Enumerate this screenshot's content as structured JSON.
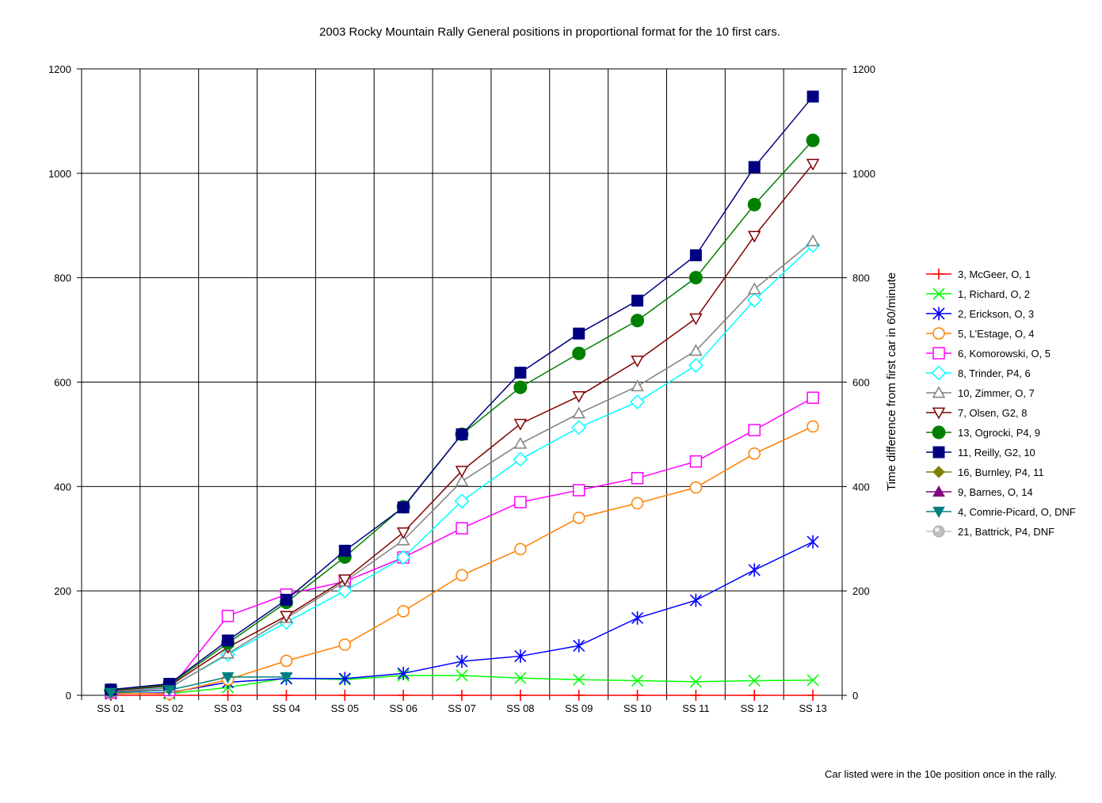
{
  "chart_data": {
    "type": "line",
    "title": "2003 Rocky Mountain Rally  General positions in proportional format for the 10 first cars.",
    "xlabel": "",
    "ylabel": "Time difference from first car in 60/minute",
    "ylim": [
      0,
      1200
    ],
    "yticks": [
      "0",
      "200",
      "400",
      "600",
      "800",
      "1000",
      "1200"
    ],
    "grid": true,
    "legend_position": "right",
    "categories": [
      "SS 01",
      "SS 02",
      "SS 03",
      "SS 04",
      "SS 05",
      "SS 06",
      "SS 07",
      "SS 08",
      "SS 09",
      "SS 10",
      "SS 11",
      "SS 12",
      "SS 13"
    ],
    "series": [
      {
        "name": "3, McGeer, O, 1",
        "color": "#ff0000",
        "marker": "plus",
        "values": [
          0,
          0,
          0,
          0,
          0,
          0,
          0,
          0,
          0,
          0,
          0,
          0,
          0
        ]
      },
      {
        "name": "1, Richard, O, 2",
        "color": "#00ff00",
        "marker": "x",
        "values": [
          5,
          3,
          15,
          33,
          30,
          38,
          38,
          33,
          30,
          28,
          26,
          28,
          29
        ]
      },
      {
        "name": "2, Erickson, O, 3",
        "color": "#0000ff",
        "marker": "star",
        "values": [
          3,
          5,
          25,
          32,
          32,
          42,
          65,
          75,
          95,
          148,
          182,
          240,
          294
        ]
      },
      {
        "name": "5, L'Estage, O, 4",
        "color": "#ff8000",
        "marker": "circle-open",
        "values": [
          4,
          3,
          30,
          66,
          97,
          161,
          230,
          280,
          340,
          368,
          398,
          463,
          515
        ]
      },
      {
        "name": "6, Komorowski, O, 5",
        "color": "#ff00ff",
        "marker": "square-open",
        "values": [
          6,
          10,
          152,
          193,
          218,
          264,
          320,
          370,
          393,
          416,
          448,
          508,
          570
        ]
      },
      {
        "name": "8, Trinder, P4, 6",
        "color": "#00ffff",
        "marker": "diamond-open",
        "values": [
          8,
          15,
          78,
          140,
          200,
          264,
          372,
          452,
          513,
          562,
          632,
          757,
          862
        ]
      },
      {
        "name": "10, Zimmer, O, 7",
        "color": "#808080",
        "marker": "triangle-open",
        "values": [
          7,
          14,
          80,
          148,
          218,
          297,
          410,
          482,
          540,
          592,
          660,
          778,
          870
        ]
      },
      {
        "name": "7, Olsen, G2, 8",
        "color": "#800000",
        "marker": "triangle-down-open",
        "values": [
          9,
          18,
          92,
          152,
          222,
          312,
          430,
          520,
          573,
          641,
          722,
          880,
          1018
        ]
      },
      {
        "name": "13, Ogrocki, P4, 9",
        "color": "#008000",
        "marker": "circle-filled",
        "values": [
          10,
          20,
          100,
          178,
          265,
          361,
          500,
          590,
          655,
          718,
          800,
          940,
          1063
        ]
      },
      {
        "name": "11, Reilly, G2, 10",
        "color": "#000080",
        "marker": "square-filled",
        "values": [
          11,
          22,
          105,
          183,
          277,
          360,
          500,
          618,
          693,
          756,
          843,
          1012,
          1147
        ]
      },
      {
        "name": "16, Burnley, P4, 11",
        "color": "#808000",
        "marker": "diamond-filled",
        "values": [
          null,
          null,
          null,
          null,
          null,
          null,
          null,
          null,
          null,
          null,
          null,
          null,
          null
        ]
      },
      {
        "name": "9, Barnes, O, 14",
        "color": "#800080",
        "marker": "triangle-filled",
        "values": [
          null,
          null,
          null,
          null,
          null,
          null,
          null,
          null,
          null,
          null,
          null,
          null,
          null
        ]
      },
      {
        "name": "4, Comrie-Picard, O, DNF",
        "color": "#008080",
        "marker": "triangle-down-filled",
        "values": [
          5,
          10,
          35,
          35,
          null,
          null,
          null,
          null,
          null,
          null,
          null,
          null,
          null
        ]
      },
      {
        "name": "21, Battrick, P4, DNF",
        "color": "#c0c0c0",
        "marker": "sphere",
        "values": [
          null,
          null,
          null,
          null,
          null,
          null,
          null,
          null,
          null,
          null,
          null,
          null,
          null
        ]
      }
    ],
    "annotations": [
      "Car listed were in the 10e position once in the rally."
    ]
  }
}
